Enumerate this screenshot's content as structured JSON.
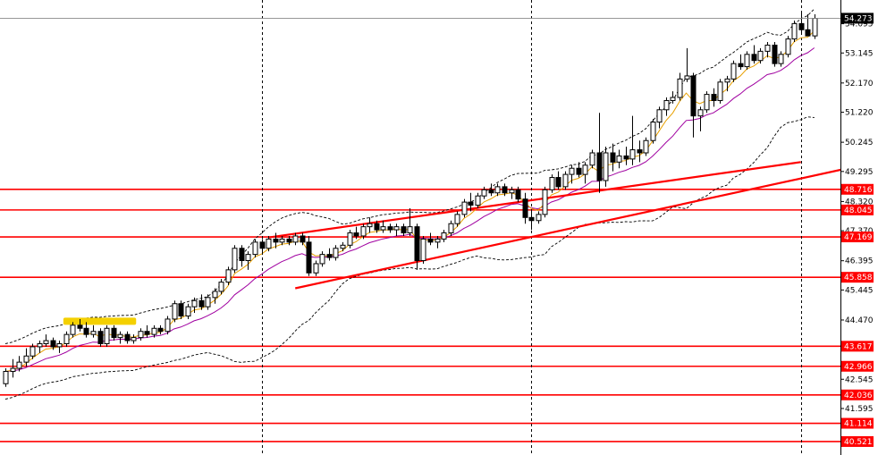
{
  "chart_data": {
    "type": "candlestick",
    "title": "",
    "xlabel": "",
    "ylabel": "",
    "ylim": [
      40.2,
      54.75
    ],
    "price_scale_labels": [
      "54.273",
      "54.095",
      "53.145",
      "52.170",
      "51.220",
      "50.245",
      "49.295",
      "48.716",
      "48.320",
      "48.045",
      "47.370",
      "47.169",
      "46.395",
      "45.858",
      "45.445",
      "44.470",
      "43.617",
      "42.966",
      "42.545",
      "42.036",
      "41.595",
      "41.114",
      "40.521"
    ],
    "current_price": "54.273",
    "horizontal_levels": [
      48.716,
      48.045,
      47.169,
      45.858,
      43.617,
      42.966,
      42.036,
      41.114,
      40.521
    ],
    "level_labels": [
      "48.716",
      "48.045",
      "47.169",
      "45.858",
      "43.617",
      "42.966",
      "42.036",
      "41.114",
      "40.521"
    ],
    "trendline_upper": {
      "from": [
        39,
        47.15
      ],
      "to": [
        118,
        49.6
      ]
    },
    "trendline_lower": {
      "from": [
        43,
        45.5
      ],
      "to": [
        126,
        49.45
      ]
    },
    "vertical_separators": [
      38,
      78,
      118
    ],
    "highlight_zone": {
      "from_bar": 9,
      "to_bar": 19,
      "value": 44.43
    },
    "colors": {
      "levels": "#ff0000",
      "trendlines": "#ff0000",
      "fast_ma": "#e8a000",
      "slow_ma": "#a000a0",
      "bands": "#000000",
      "highlight": "#f4d000",
      "current_price_bg": "#000000"
    },
    "candles": [
      [
        42.4,
        42.9,
        42.3,
        42.8
      ],
      [
        42.8,
        43.2,
        42.6,
        42.9
      ],
      [
        42.9,
        43.3,
        42.8,
        43.1
      ],
      [
        43.1,
        43.55,
        42.95,
        43.3
      ],
      [
        43.3,
        43.7,
        43.2,
        43.6
      ],
      [
        43.6,
        43.8,
        43.4,
        43.7
      ],
      [
        43.7,
        44.0,
        43.6,
        43.8
      ],
      [
        43.8,
        43.9,
        43.5,
        43.6
      ],
      [
        43.6,
        43.8,
        43.4,
        43.7
      ],
      [
        43.7,
        44.1,
        43.6,
        44.0
      ],
      [
        44.0,
        44.4,
        43.9,
        44.3
      ],
      [
        44.3,
        44.5,
        44.1,
        44.2
      ],
      [
        44.2,
        44.4,
        43.9,
        44.0
      ],
      [
        44.0,
        44.3,
        43.9,
        44.1
      ],
      [
        44.1,
        44.2,
        43.6,
        43.7
      ],
      [
        43.7,
        44.3,
        43.6,
        44.2
      ],
      [
        44.2,
        44.3,
        43.8,
        43.9
      ],
      [
        43.9,
        44.1,
        43.7,
        44.0
      ],
      [
        44.0,
        44.1,
        43.7,
        43.8
      ],
      [
        43.8,
        44.0,
        43.7,
        43.9
      ],
      [
        43.9,
        44.2,
        43.8,
        44.1
      ],
      [
        44.1,
        44.3,
        43.9,
        44.0
      ],
      [
        44.0,
        44.3,
        43.9,
        44.2
      ],
      [
        44.2,
        44.3,
        44.0,
        44.1
      ],
      [
        44.1,
        44.6,
        44.0,
        44.5
      ],
      [
        44.5,
        45.1,
        44.4,
        45.0
      ],
      [
        45.0,
        45.1,
        44.5,
        44.6
      ],
      [
        44.6,
        45.0,
        44.5,
        44.9
      ],
      [
        44.9,
        45.2,
        44.7,
        45.1
      ],
      [
        45.1,
        45.3,
        44.8,
        44.9
      ],
      [
        44.9,
        45.3,
        44.8,
        45.2
      ],
      [
        45.2,
        45.5,
        45.0,
        45.4
      ],
      [
        45.4,
        45.8,
        45.3,
        45.7
      ],
      [
        45.7,
        46.2,
        45.6,
        46.1
      ],
      [
        46.1,
        46.9,
        46.0,
        46.8
      ],
      [
        46.8,
        46.9,
        46.2,
        46.4
      ],
      [
        46.4,
        46.7,
        46.1,
        46.6
      ],
      [
        46.6,
        47.1,
        46.5,
        47.0
      ],
      [
        47.0,
        47.1,
        46.6,
        46.8
      ],
      [
        46.8,
        47.2,
        46.7,
        47.1
      ],
      [
        47.1,
        47.3,
        46.8,
        47.0
      ],
      [
        47.0,
        47.2,
        46.9,
        47.1
      ],
      [
        47.1,
        47.2,
        46.9,
        47.0
      ],
      [
        47.0,
        47.3,
        46.9,
        47.2
      ],
      [
        47.2,
        47.3,
        46.9,
        47.0
      ],
      [
        47.0,
        47.2,
        45.9,
        46.0
      ],
      [
        46.0,
        46.4,
        45.9,
        46.3
      ],
      [
        46.3,
        46.7,
        46.2,
        46.6
      ],
      [
        46.6,
        46.8,
        46.4,
        46.5
      ],
      [
        46.5,
        46.9,
        46.4,
        46.8
      ],
      [
        46.8,
        47.0,
        46.7,
        46.9
      ],
      [
        46.9,
        47.4,
        46.8,
        47.3
      ],
      [
        47.3,
        47.5,
        47.1,
        47.2
      ],
      [
        47.2,
        47.6,
        47.1,
        47.5
      ],
      [
        47.5,
        47.8,
        47.3,
        47.6
      ],
      [
        47.6,
        47.7,
        47.3,
        47.4
      ],
      [
        47.4,
        47.7,
        47.3,
        47.5
      ],
      [
        47.5,
        47.6,
        47.3,
        47.4
      ],
      [
        47.4,
        47.6,
        47.2,
        47.5
      ],
      [
        47.5,
        47.6,
        47.2,
        47.3
      ],
      [
        47.3,
        48.1,
        47.2,
        47.5
      ],
      [
        47.5,
        47.6,
        46.1,
        46.4
      ],
      [
        46.4,
        47.2,
        46.3,
        47.1
      ],
      [
        47.1,
        47.3,
        46.9,
        47.0
      ],
      [
        47.0,
        47.2,
        46.8,
        47.1
      ],
      [
        47.1,
        47.4,
        47.0,
        47.3
      ],
      [
        47.3,
        47.7,
        47.2,
        47.6
      ],
      [
        47.6,
        48.0,
        47.5,
        47.9
      ],
      [
        47.9,
        48.4,
        47.8,
        48.3
      ],
      [
        48.3,
        48.6,
        48.0,
        48.2
      ],
      [
        48.2,
        48.6,
        48.1,
        48.5
      ],
      [
        48.5,
        48.8,
        48.4,
        48.7
      ],
      [
        48.7,
        48.9,
        48.5,
        48.6
      ],
      [
        48.6,
        48.9,
        48.5,
        48.8
      ],
      [
        48.8,
        48.9,
        48.5,
        48.6
      ],
      [
        48.6,
        48.8,
        48.4,
        48.7
      ],
      [
        48.7,
        48.8,
        48.3,
        48.4
      ],
      [
        48.4,
        48.6,
        47.6,
        47.8
      ],
      [
        47.8,
        48.0,
        47.4,
        47.7
      ],
      [
        47.7,
        48.0,
        47.6,
        47.9
      ],
      [
        47.9,
        48.8,
        47.8,
        48.7
      ],
      [
        48.7,
        49.2,
        48.6,
        49.1
      ],
      [
        49.1,
        49.3,
        48.7,
        48.8
      ],
      [
        48.8,
        49.3,
        48.7,
        49.2
      ],
      [
        49.2,
        49.5,
        48.9,
        49.4
      ],
      [
        49.4,
        49.6,
        49.1,
        49.2
      ],
      [
        49.2,
        49.6,
        48.9,
        49.5
      ],
      [
        49.5,
        50.0,
        49.4,
        49.9
      ],
      [
        49.9,
        51.2,
        48.6,
        49.0
      ],
      [
        49.0,
        50.1,
        48.8,
        49.9
      ],
      [
        49.9,
        50.2,
        49.3,
        49.6
      ],
      [
        49.6,
        50.0,
        49.4,
        49.8
      ],
      [
        49.8,
        50.1,
        49.5,
        49.7
      ],
      [
        49.7,
        51.1,
        49.5,
        50.0
      ],
      [
        50.0,
        50.3,
        49.6,
        49.9
      ],
      [
        49.9,
        50.4,
        49.8,
        50.3
      ],
      [
        50.3,
        51.0,
        50.2,
        50.9
      ],
      [
        50.9,
        51.4,
        50.7,
        51.3
      ],
      [
        51.3,
        51.7,
        51.1,
        51.6
      ],
      [
        51.6,
        51.9,
        51.5,
        51.7
      ],
      [
        51.7,
        52.5,
        51.6,
        52.3
      ],
      [
        52.3,
        53.3,
        52.2,
        52.4
      ],
      [
        52.4,
        52.5,
        50.4,
        51.1
      ],
      [
        51.1,
        51.4,
        50.6,
        51.3
      ],
      [
        51.3,
        51.9,
        51.2,
        51.8
      ],
      [
        51.8,
        52.0,
        51.4,
        51.6
      ],
      [
        51.6,
        52.3,
        51.5,
        52.2
      ],
      [
        52.2,
        52.4,
        51.9,
        52.3
      ],
      [
        52.3,
        52.9,
        52.2,
        52.8
      ],
      [
        52.8,
        53.1,
        52.6,
        52.7
      ],
      [
        52.7,
        53.2,
        52.6,
        53.1
      ],
      [
        53.1,
        53.4,
        52.8,
        52.9
      ],
      [
        52.9,
        53.3,
        52.8,
        53.2
      ],
      [
        53.2,
        53.5,
        53.0,
        53.4
      ],
      [
        53.4,
        53.5,
        52.7,
        52.8
      ],
      [
        52.8,
        53.2,
        52.7,
        53.1
      ],
      [
        53.1,
        53.7,
        53.0,
        53.6
      ],
      [
        53.6,
        54.2,
        53.5,
        54.1
      ],
      [
        54.1,
        54.5,
        53.8,
        53.9
      ],
      [
        53.9,
        54.4,
        53.7,
        53.7
      ],
      [
        53.7,
        54.4,
        53.6,
        54.27
      ]
    ]
  }
}
